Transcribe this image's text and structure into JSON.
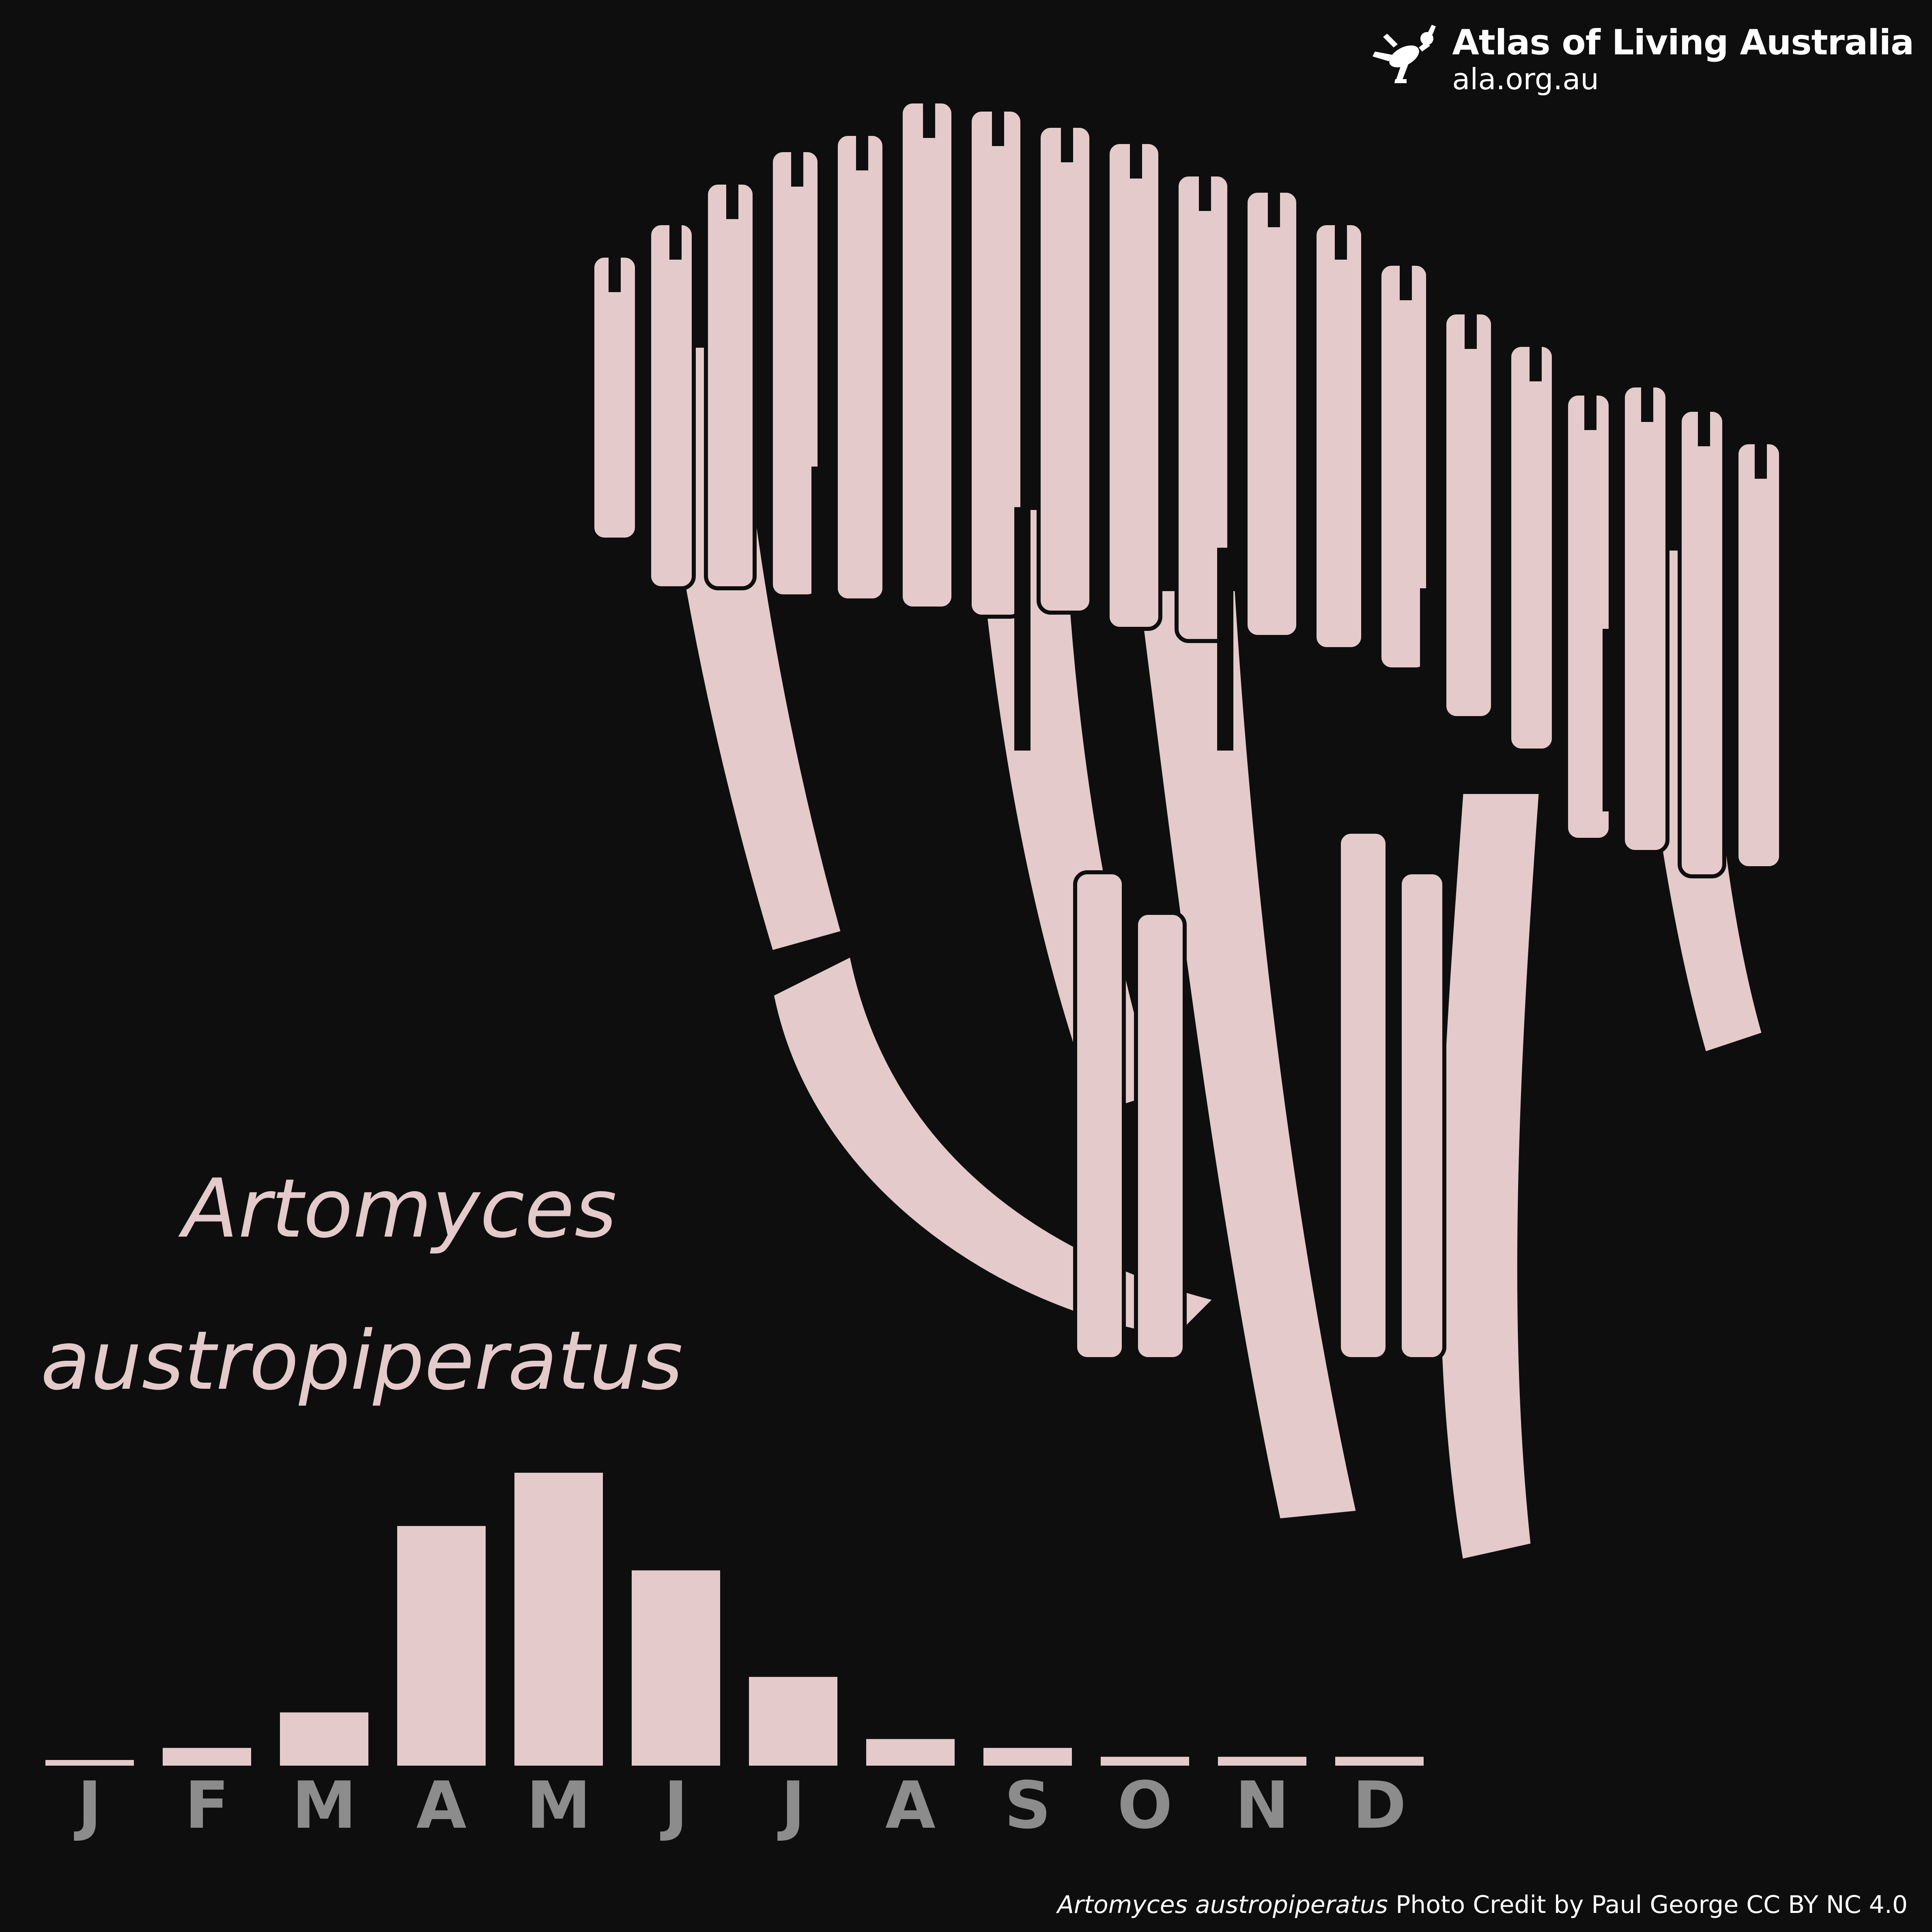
{
  "brand": {
    "name": "Atlas of Living Australia",
    "url": "ala.org.au",
    "logo_icon": "ala-kangaroo-logo-icon",
    "color": "#ffffff"
  },
  "title": {
    "line1": "Artomyces",
    "line2": "austropiperatus"
  },
  "illustration": {
    "subject": "fungus-illustration",
    "color": "#e4cacb"
  },
  "credit": {
    "species": "Artomyces austropiperatus",
    "text": " Photo Credit by Paul George CC BY NC 4.0"
  },
  "colors": {
    "background": "#0e0e0e",
    "bar": "#e4cacb",
    "month_label": "#8c8c8c",
    "title": "#e4cacb"
  },
  "chart_data": {
    "type": "bar",
    "categories": [
      "J",
      "F",
      "M",
      "A",
      "M",
      "J",
      "J",
      "A",
      "S",
      "O",
      "N",
      "D"
    ],
    "values": [
      0.5,
      2,
      6,
      27,
      33,
      22,
      10,
      3,
      2,
      1,
      1,
      1
    ],
    "ylim": [
      0,
      33
    ],
    "title": "",
    "xlabel": "",
    "ylabel": "",
    "grid": false,
    "axes_visible": false
  }
}
